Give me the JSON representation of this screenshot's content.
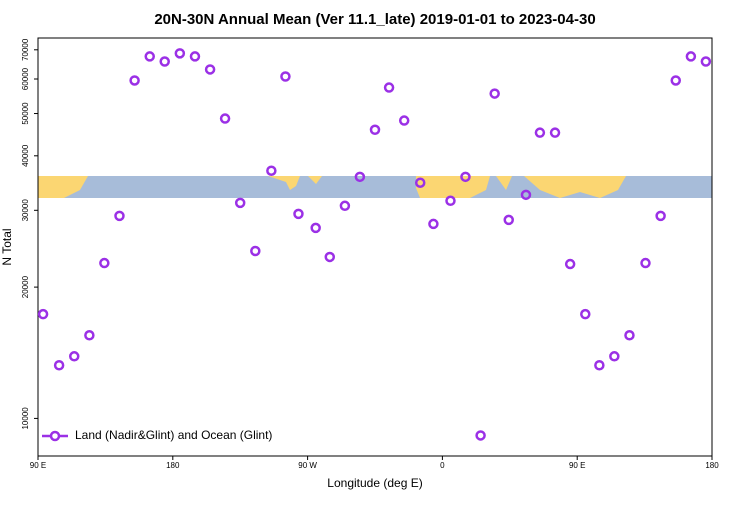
{
  "chart_data": {
    "type": "scatter",
    "title": "20N-30N Annual Mean (Ver 11.1_late)   2019-01-01 to 2023-04-30",
    "x_label": "Longitude (deg E)",
    "y_label": "N Total",
    "log_y": true,
    "legend": "lower left",
    "xlim": [
      90,
      540
    ],
    "ylim": [
      8200,
      74500
    ],
    "xticks": [
      {
        "value": 90,
        "label": "90 E"
      },
      180,
      {
        "value": 270,
        "label": "90 W"
      },
      {
        "value": 360,
        "label": "0"
      },
      {
        "value": 450,
        "label": "90 E"
      },
      {
        "value": 540,
        "label": "180"
      }
    ],
    "yticks": [
      10000,
      20000,
      30000,
      40000,
      50000,
      60000,
      70000
    ],
    "x": [
      93.4,
      104.1,
      114.2,
      124.3,
      134.3,
      144.4,
      154.5,
      164.6,
      174.6,
      184.7,
      194.8,
      204.9,
      214.9,
      225.0,
      235.1,
      245.8,
      255.2,
      263.9,
      275.4,
      284.8,
      294.9,
      304.9,
      315.0,
      324.4,
      334.5,
      345.2,
      354.0,
      365.4,
      375.4,
      385.5,
      394.9,
      404.3,
      415.8,
      425.1,
      435.2,
      445.3,
      455.4,
      464.8,
      474.8,
      484.9,
      495.6,
      505.7,
      515.8,
      525.9,
      535.9
    ],
    "series": [
      {
        "name": "Land (Nadir&Glint) and Ocean (Glint)",
        "color": "#9b30e6",
        "values": [
          17340,
          13240,
          13880,
          15510,
          22710,
          29130,
          59530,
          67600,
          65800,
          68700,
          67600,
          63100,
          48700,
          31200,
          24200,
          36970,
          60800,
          29440,
          27340,
          23450,
          30720,
          35800,
          45900,
          57350,
          48180,
          34700,
          27920,
          31550,
          35800,
          9140,
          55560,
          28520,
          32550,
          45200,
          45200,
          22590,
          17340,
          13240,
          13880,
          15510,
          22710,
          29130,
          59530,
          67600,
          65800
        ]
      }
    ]
  }
}
